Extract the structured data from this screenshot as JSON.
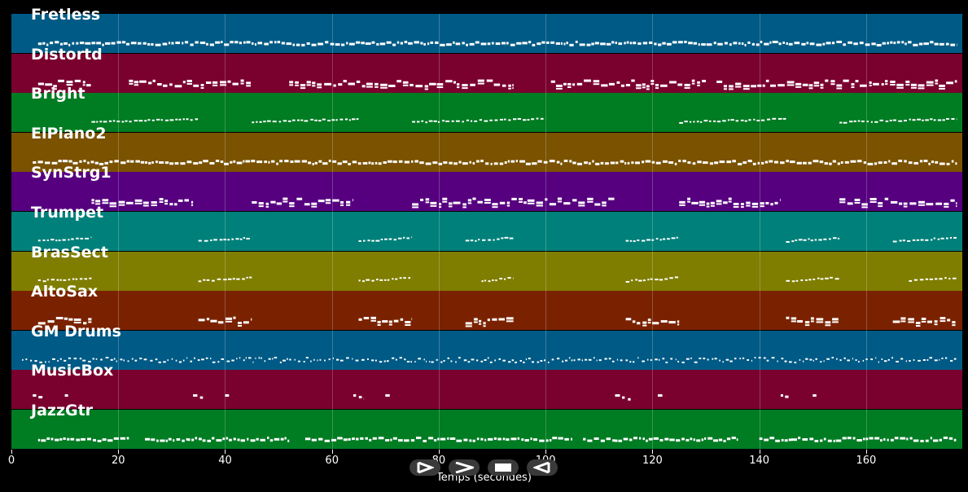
{
  "chart_data": {
    "type": "piano-roll",
    "xlabel": "Temps (secondes)",
    "xlim": [
      0,
      178
    ],
    "xticks": [
      0,
      20,
      40,
      60,
      80,
      100,
      120,
      140,
      160
    ],
    "grid": true,
    "tracks": [
      {
        "name": "Fretless",
        "color": "#005a86",
        "segments": [
          [
            5,
            177
          ]
        ],
        "density": "dense"
      },
      {
        "name": "Distortd",
        "color": "#7a002e",
        "segments": [
          [
            5,
            15
          ],
          [
            22,
            45
          ],
          [
            52,
            94
          ],
          [
            101,
            130
          ],
          [
            132,
            177
          ]
        ],
        "density": "block"
      },
      {
        "name": "Bright",
        "color": "#007c22",
        "segments": [
          [
            15,
            35
          ],
          [
            45,
            65
          ],
          [
            75,
            100
          ],
          [
            125,
            145
          ],
          [
            155,
            177
          ]
        ],
        "density": "sparse"
      },
      {
        "name": "ElPiano2",
        "color": "#7a5200",
        "segments": [
          [
            4,
            177
          ]
        ],
        "density": "dense"
      },
      {
        "name": "SynStrg1",
        "color": "#560080",
        "segments": [
          [
            15,
            34
          ],
          [
            45,
            64
          ],
          [
            75,
            113
          ],
          [
            125,
            144
          ],
          [
            155,
            177
          ]
        ],
        "density": "block"
      },
      {
        "name": "Trumpet",
        "color": "#00807a",
        "segments": [
          [
            5,
            15
          ],
          [
            35,
            45
          ],
          [
            65,
            75
          ],
          [
            85,
            94
          ],
          [
            115,
            125
          ],
          [
            145,
            155
          ],
          [
            165,
            177
          ]
        ],
        "density": "sparse"
      },
      {
        "name": "BrasSect",
        "color": "#7f7e00",
        "segments": [
          [
            5,
            15
          ],
          [
            35,
            45
          ],
          [
            65,
            75
          ],
          [
            88,
            94
          ],
          [
            115,
            125
          ],
          [
            145,
            155
          ],
          [
            168,
            177
          ]
        ],
        "density": "sparse"
      },
      {
        "name": "AltoSax",
        "color": "#7a2200",
        "segments": [
          [
            5,
            15
          ],
          [
            35,
            45
          ],
          [
            65,
            75
          ],
          [
            85,
            94
          ],
          [
            115,
            125
          ],
          [
            145,
            155
          ],
          [
            165,
            177
          ]
        ],
        "density": "block"
      },
      {
        "name": "GM Drums",
        "color": "#005a86",
        "segments": [
          [
            2,
            177
          ]
        ],
        "density": "drums"
      },
      {
        "name": "MusicBox",
        "color": "#7a002e",
        "segments": [
          [
            4,
            6
          ],
          [
            10,
            11
          ],
          [
            34,
            36
          ],
          [
            40,
            41
          ],
          [
            64,
            66
          ],
          [
            70,
            71
          ],
          [
            113,
            116
          ],
          [
            121,
            122
          ],
          [
            144,
            146
          ],
          [
            150,
            151
          ]
        ],
        "density": "tiny"
      },
      {
        "name": "JazzGtr",
        "color": "#007c22",
        "segments": [
          [
            5,
            22
          ],
          [
            25,
            33
          ],
          [
            33,
            52
          ],
          [
            55,
            63
          ],
          [
            63,
            105
          ],
          [
            107,
            113
          ],
          [
            113,
            136
          ],
          [
            140,
            146
          ],
          [
            146,
            177
          ]
        ],
        "density": "dense"
      }
    ]
  },
  "controls": [
    {
      "name": "play-forward-icon"
    },
    {
      "name": "next-icon"
    },
    {
      "name": "stop-icon"
    },
    {
      "name": "previous-icon"
    }
  ]
}
